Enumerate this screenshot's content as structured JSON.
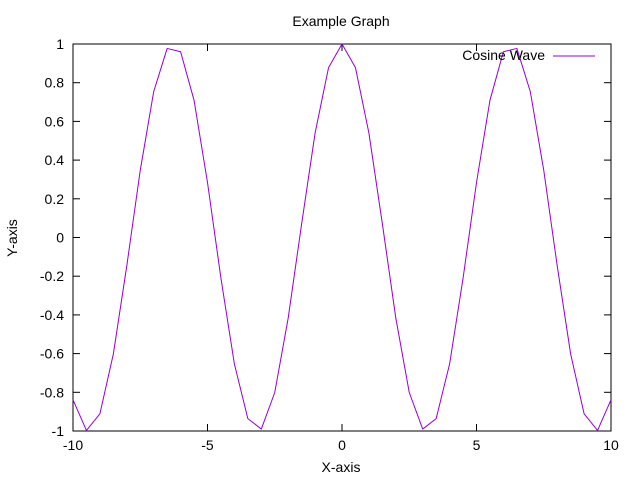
{
  "chart_data": {
    "type": "line",
    "title": "Example Graph",
    "xlabel": "X-axis",
    "ylabel": "Y-axis",
    "xlim": [
      -10,
      10
    ],
    "ylim": [
      -1,
      1
    ],
    "grid": false,
    "legend_position": "top-right",
    "x_ticks": [
      -10,
      -5,
      0,
      5,
      10
    ],
    "x_tick_labels": [
      "-10",
      "-5",
      "0",
      "5",
      "10"
    ],
    "y_ticks": [
      -1,
      -0.8,
      -0.6,
      -0.4,
      -0.2,
      0,
      0.2,
      0.4,
      0.6,
      0.8,
      1
    ],
    "y_tick_labels": [
      "-1",
      "-0.8",
      "-0.6",
      "-0.4",
      "-0.2",
      "0",
      "0.2",
      "0.4",
      "0.6",
      "0.8",
      "1"
    ],
    "series": [
      {
        "name": "Cosine Wave",
        "function": "cos(x)",
        "color": "#9400d3",
        "x": [
          -10,
          -9.5,
          -9,
          -8.5,
          -8,
          -7.5,
          -7,
          -6.5,
          -6,
          -5.5,
          -5,
          -4.5,
          -4,
          -3.5,
          -3,
          -2.5,
          -2,
          -1.5,
          -1,
          -0.5,
          0,
          0.5,
          1,
          1.5,
          2,
          2.5,
          3,
          3.5,
          4,
          4.5,
          5,
          5.5,
          6,
          6.5,
          7,
          7.5,
          8,
          8.5,
          9,
          9.5,
          10
        ],
        "y": [
          -0.839,
          -0.997,
          -0.911,
          -0.602,
          -0.146,
          0.347,
          0.754,
          0.977,
          0.96,
          0.709,
          0.284,
          -0.211,
          -0.654,
          -0.936,
          -0.99,
          -0.801,
          -0.416,
          0.071,
          0.54,
          0.878,
          1.0,
          0.878,
          0.54,
          0.071,
          -0.416,
          -0.801,
          -0.99,
          -0.936,
          -0.654,
          -0.211,
          0.284,
          0.709,
          0.96,
          0.977,
          0.754,
          0.347,
          -0.146,
          -0.602,
          -0.911,
          -0.997,
          -0.839
        ]
      }
    ]
  }
}
